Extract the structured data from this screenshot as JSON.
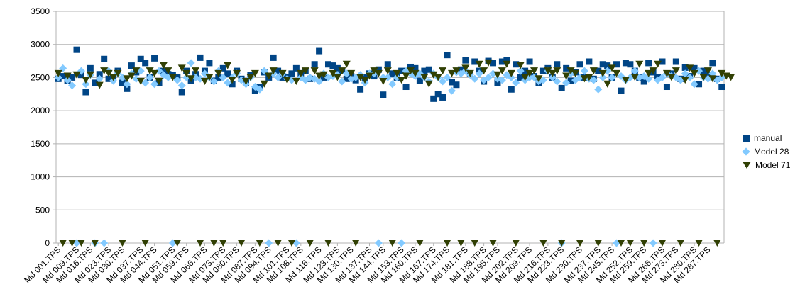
{
  "chart_data": {
    "type": "scatter",
    "title": "",
    "xlabel": "",
    "ylabel": "",
    "ylim": [
      0,
      3500
    ],
    "yticks": [
      0,
      500,
      1000,
      1500,
      2000,
      2500,
      3000,
      3500
    ],
    "grid": "horizontal",
    "legend_position": "right",
    "x_count": 146,
    "x_tick_labels": [
      "Md 001.TPS",
      "Md 009.TPS",
      "Md 016.TPS",
      "Md 023.TPS",
      "Md 030.TPS",
      "Md 037.TPS",
      "Md 044.TPS",
      "Md 051.TPS",
      "Md 059.TPS",
      "Md 066.TPS",
      "Md 073.TPS",
      "Md 080.TPS",
      "Md 087.TPS",
      "Md 094.TPS",
      "Md 101.TPS",
      "Md 108.TPS",
      "Md 116.TPS",
      "Md 123.TPS",
      "Md 130.TPS",
      "Md 137.TPS",
      "Md 144.TPS",
      "Md 153.TPS",
      "Md 160.TPS",
      "Md 167.TPS",
      "Md 174.TPS",
      "Md 181.TPS",
      "Md 188.TPS",
      "Md 195.TPS",
      "Md 202.TPS",
      "Md 209.TPS",
      "Md 216.TPS",
      "Md 223.TPS",
      "Md 230.TPS",
      "Md 237.TPS",
      "Md 245.TPS",
      "Md 252.TPS",
      "Md 259.TPS",
      "Md 266.TPS",
      "Md 273.TPS",
      "Md 280.TPS",
      "Md 287.TPS"
    ],
    "series": [
      {
        "name": "manual",
        "marker": "square",
        "color": "#004586",
        "values": [
          2480,
          2520,
          2450,
          2500,
          2920,
          2540,
          2280,
          2640,
          2420,
          2550,
          2780,
          2480,
          2500,
          2600,
          2420,
          2330,
          2680,
          2580,
          2780,
          2720,
          2500,
          2790,
          2420,
          2600,
          2550,
          2540,
          2500,
          2280,
          2600,
          2450,
          2550,
          2800,
          2600,
          2720,
          2450,
          2500,
          2640,
          2560,
          2400,
          2600,
          2480,
          2420,
          2540,
          2300,
          2360,
          2580,
          2500,
          2800,
          2600,
          2500,
          2500,
          2560,
          2640,
          2540,
          2600,
          2480,
          2700,
          2900,
          2500,
          2700,
          2680,
          2640,
          2600,
          2480,
          2520,
          2460,
          2320,
          2500,
          2560,
          2520,
          2620,
          2240,
          2700,
          2560,
          2500,
          2600,
          2360,
          2660,
          2640,
          2450,
          2600,
          2620,
          2180,
          2250,
          2200,
          2840,
          2430,
          2390,
          2620,
          2760,
          2560,
          2740,
          2600,
          2440,
          2750,
          2720,
          2420,
          2740,
          2760,
          2320,
          2700,
          2500,
          2600,
          2740,
          2520,
          2420,
          2600,
          2640,
          2500,
          2700,
          2340,
          2640,
          2450,
          2580,
          2700,
          2500,
          2740,
          2480,
          2600,
          2700,
          2680,
          2500,
          2700,
          2300,
          2720,
          2700,
          2600,
          2500,
          2440,
          2720,
          2580,
          2500,
          2740,
          2360,
          2560,
          2740,
          2480,
          2650,
          2520,
          2640,
          2400,
          2600,
          2540,
          2720,
          2480,
          2360
        ]
      },
      {
        "name": "Model 28",
        "marker": "diamond",
        "color": "#83caff",
        "values": [
          2500,
          2640,
          2460,
          2380,
          0,
          2600,
          2400,
          2540,
          0,
          2480,
          0,
          2600,
          2450,
          2560,
          2500,
          2400,
          2560,
          2480,
          2600,
          2420,
          2500,
          2400,
          2600,
          2540,
          2500,
          0,
          2460,
          2380,
          2500,
          2720,
          2500,
          2480,
          2560,
          2500,
          2440,
          2600,
          2500,
          2420,
          2500,
          2560,
          2460,
          2400,
          2500,
          2360,
          2320,
          2600,
          0,
          2560,
          2500,
          2560,
          2480,
          2460,
          0,
          2500,
          2460,
          2500,
          2480,
          2440,
          2560,
          2500,
          2520,
          2540,
          2440,
          2560,
          2480,
          2500,
          2540,
          2420,
          2560,
          2560,
          0,
          2500,
          2500,
          2400,
          2500,
          0,
          2600,
          2560,
          2520,
          2560,
          2500,
          2440,
          2560,
          2500,
          2440,
          2500,
          2300,
          2580,
          2560,
          2600,
          2540,
          2480,
          2560,
          2460,
          2500,
          2560,
          2480,
          2460,
          2540,
          2500,
          2420,
          2600,
          2460,
          2500,
          2500,
          2440,
          2460,
          2600,
          2500,
          2440,
          0,
          2420,
          2560,
          2460,
          2500,
          2600,
          2480,
          2460,
          2320,
          2500,
          2600,
          2500,
          0,
          2520,
          2460,
          2500,
          2600,
          2500,
          2520,
          2480,
          0,
          2460,
          2500,
          2560,
          2520,
          2500,
          2460,
          2560,
          2500,
          2400,
          2600,
          2500,
          2480,
          2560,
          2460,
          2500
        ]
      },
      {
        "name": "Model 71",
        "marker": "triangle-down",
        "color": "#314004",
        "values": [
          2560,
          0,
          2520,
          0,
          2540,
          0,
          2460,
          2540,
          0,
          2380,
          2600,
          2560,
          2500,
          2560,
          0,
          2480,
          2520,
          2600,
          2440,
          0,
          2600,
          2560,
          2440,
          2680,
          2600,
          2500,
          0,
          2640,
          2560,
          2480,
          2600,
          0,
          2440,
          2500,
          0,
          2560,
          0,
          2680,
          2460,
          2560,
          0,
          2440,
          2500,
          2560,
          0,
          2400,
          2520,
          2600,
          0,
          2560,
          2460,
          0,
          2440,
          2560,
          2600,
          0,
          2600,
          2520,
          2540,
          0,
          2560,
          2500,
          2600,
          2700,
          2560,
          0,
          2500,
          2460,
          2520,
          2600,
          2560,
          2440,
          2600,
          0,
          2560,
          2460,
          2520,
          2600,
          2560,
          0,
          2500,
          2400,
          2540,
          2500,
          2600,
          0,
          2560,
          2600,
          0,
          2640,
          2560,
          0,
          2700,
          2600,
          2720,
          0,
          2540,
          2600,
          2700,
          2560,
          0,
          2680,
          2500,
          2560,
          2600,
          2480,
          0,
          2600,
          2560,
          2600,
          0,
          2520,
          2600,
          2560,
          0,
          2480,
          2500,
          2600,
          0,
          2560,
          2400,
          2640,
          2560,
          0,
          2460,
          0,
          2500,
          2700,
          0,
          2560,
          2600,
          2700,
          0,
          2560,
          2500,
          2600,
          0,
          2460,
          2640,
          2560,
          0,
          2500,
          2600,
          2480,
          0,
          2560,
          2520,
          2500
        ]
      }
    ]
  }
}
